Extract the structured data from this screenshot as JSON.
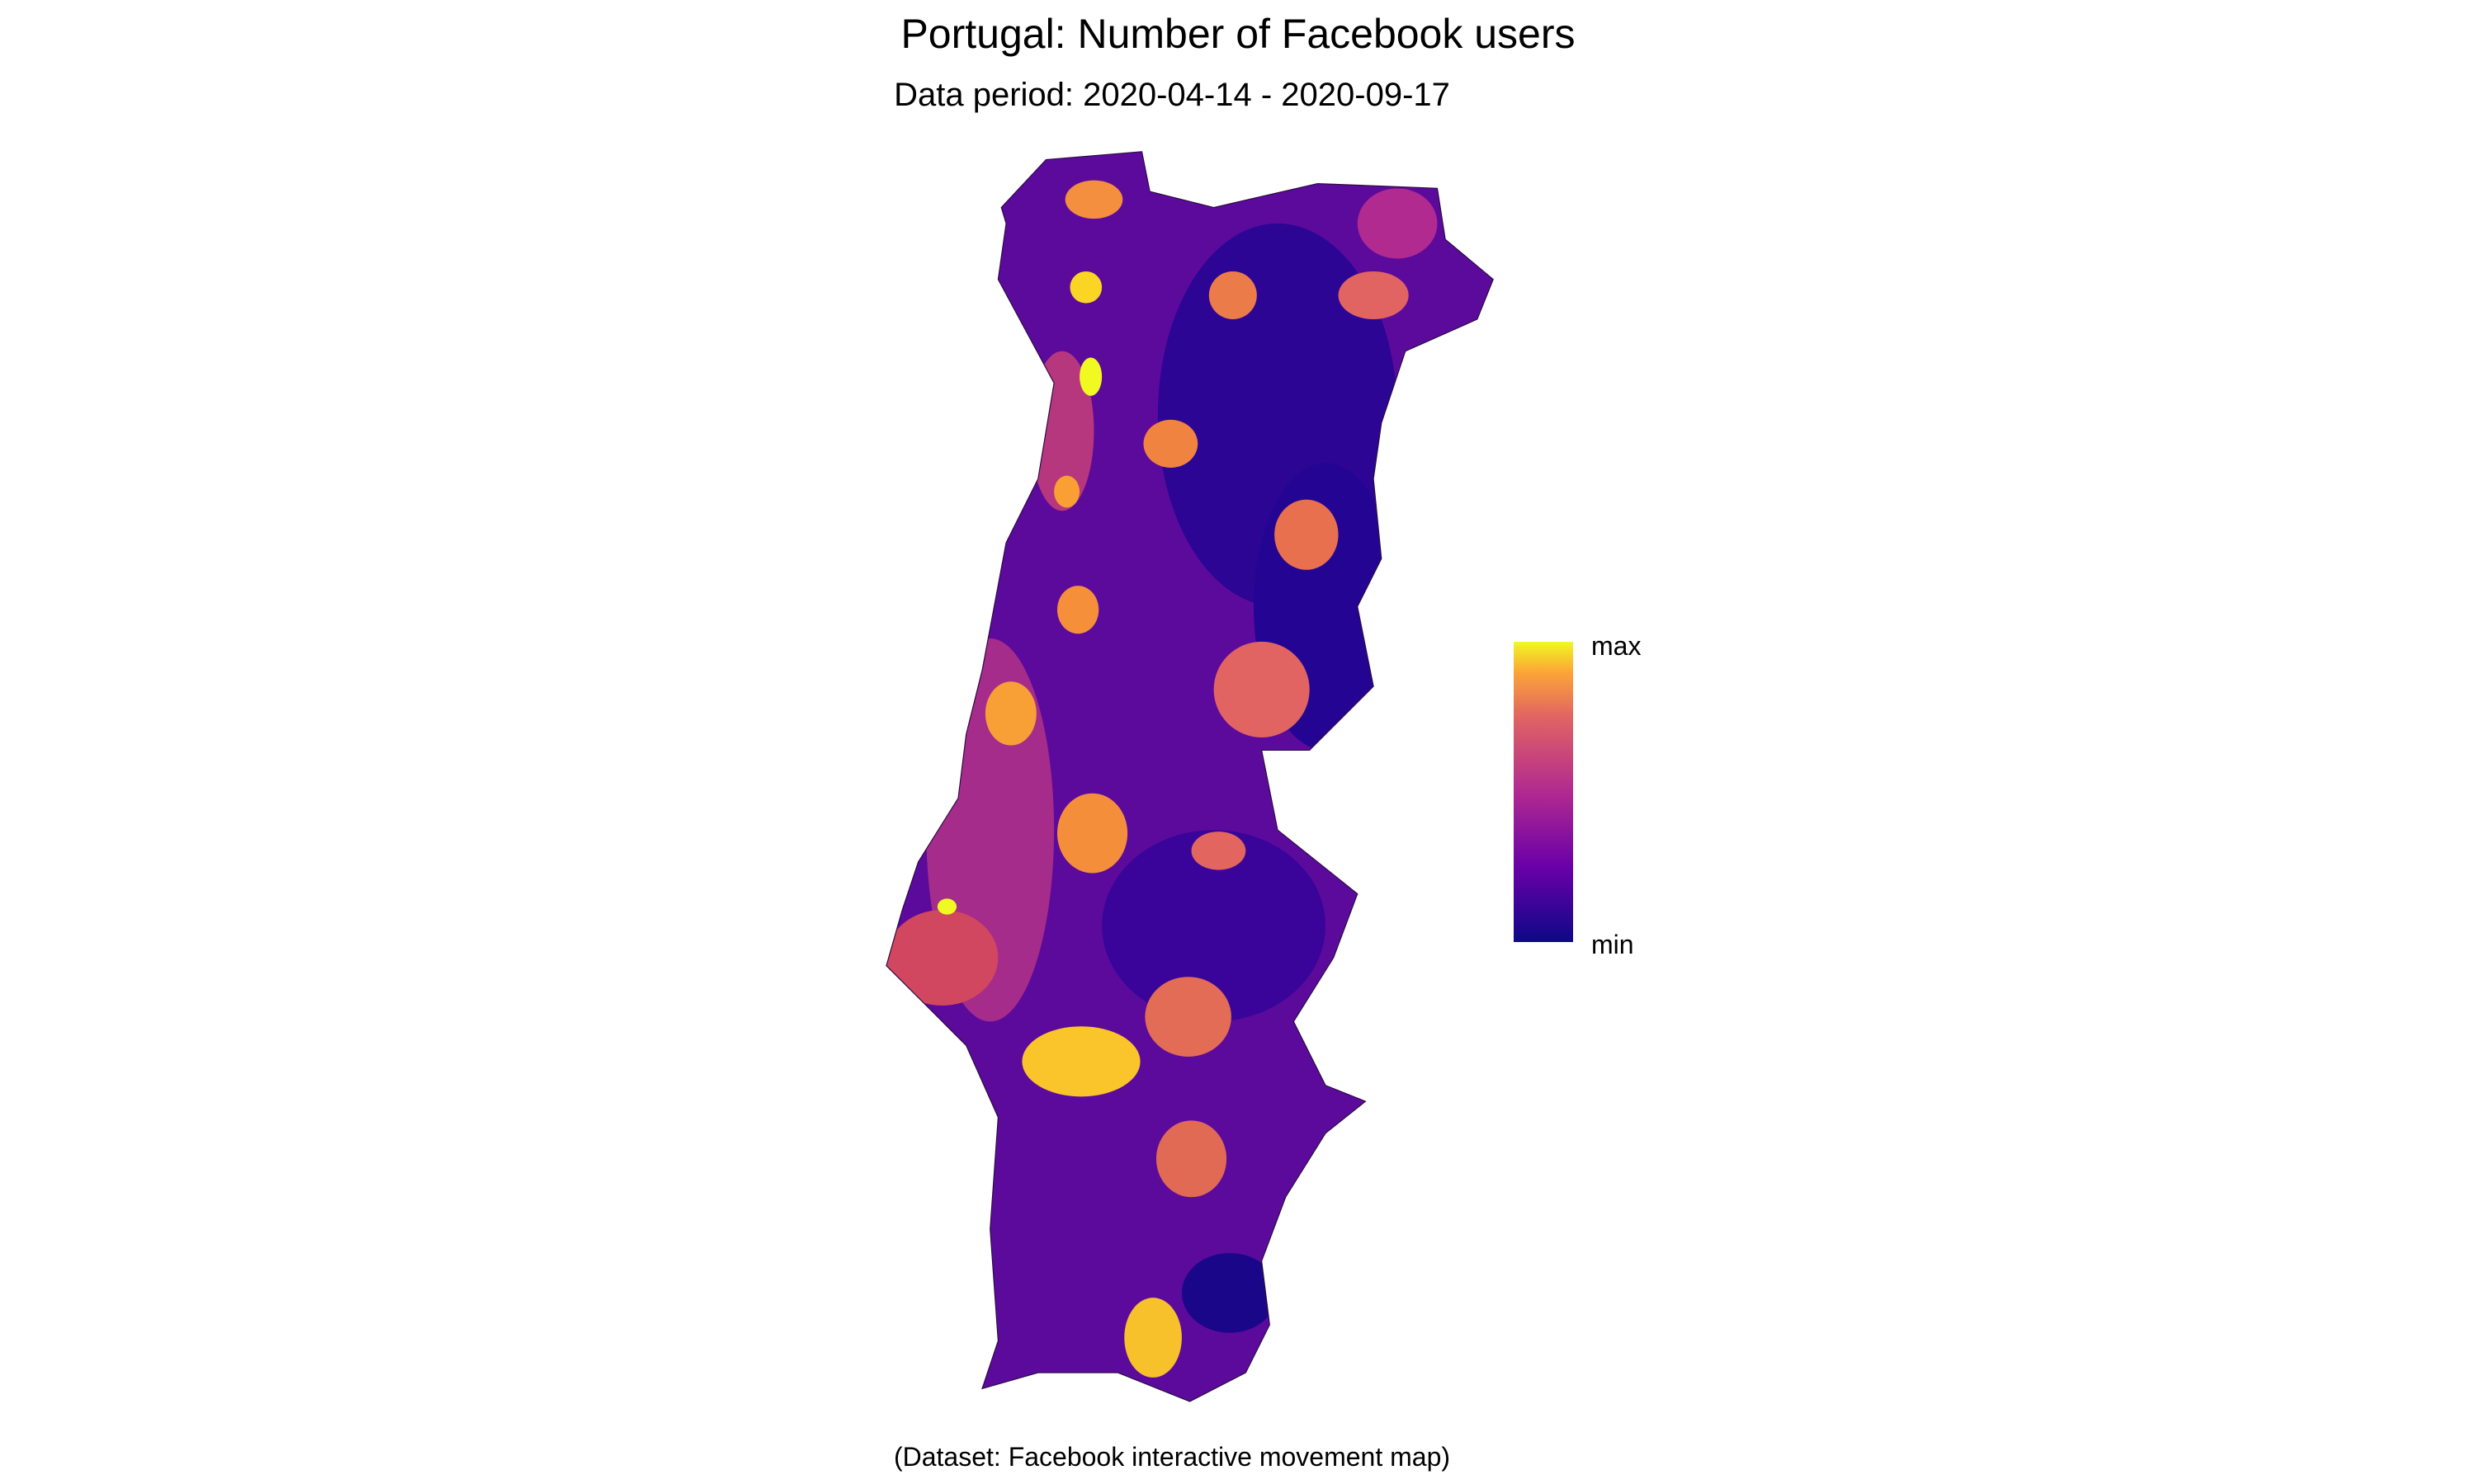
{
  "title": "Portugal: Number of Facebook users",
  "subtitle": "Data period: 2020-04-14 - 2020-09-17",
  "legend": {
    "max": "max",
    "min": "min"
  },
  "caption": "(Dataset: Facebook interactive movement map)"
}
